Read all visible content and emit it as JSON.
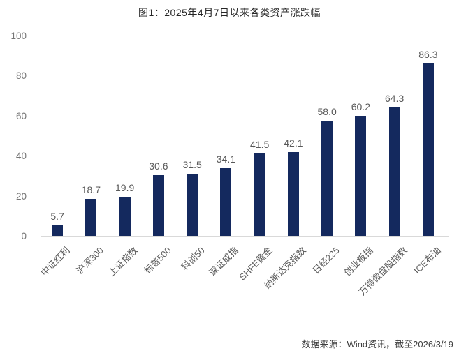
{
  "chart_data": {
    "type": "bar",
    "title": "图1：2025年4月7日以来各类资产涨跌幅",
    "categories": [
      "中证红利",
      "沪深300",
      "上证指数",
      "标普500",
      "科创50",
      "深证成指",
      "SHFE黄金",
      "纳斯达克指数",
      "日经225",
      "创业板指",
      "万得微盘股指数",
      "ICE布油"
    ],
    "values": [
      5.7,
      18.7,
      19.9,
      30.6,
      31.5,
      34.1,
      41.5,
      42.1,
      58.0,
      60.2,
      64.3,
      86.3
    ],
    "value_labels": [
      "5.7",
      "18.7",
      "19.9",
      "30.6",
      "31.5",
      "34.1",
      "41.5",
      "42.1",
      "58.0",
      "60.2",
      "64.3",
      "86.3"
    ],
    "y_ticks": [
      0,
      20,
      40,
      60,
      80,
      100
    ],
    "ylim": [
      0,
      100
    ],
    "grid": false,
    "legend": "none",
    "xlabel": "",
    "ylabel": "",
    "bar_color": "#14295e",
    "value_label_color": "#595959",
    "tick_label_color": "#757575",
    "axis_line_color": "#d9d9d9",
    "source_note": "数据来源：Wind资讯，截至2026/3/19"
  }
}
